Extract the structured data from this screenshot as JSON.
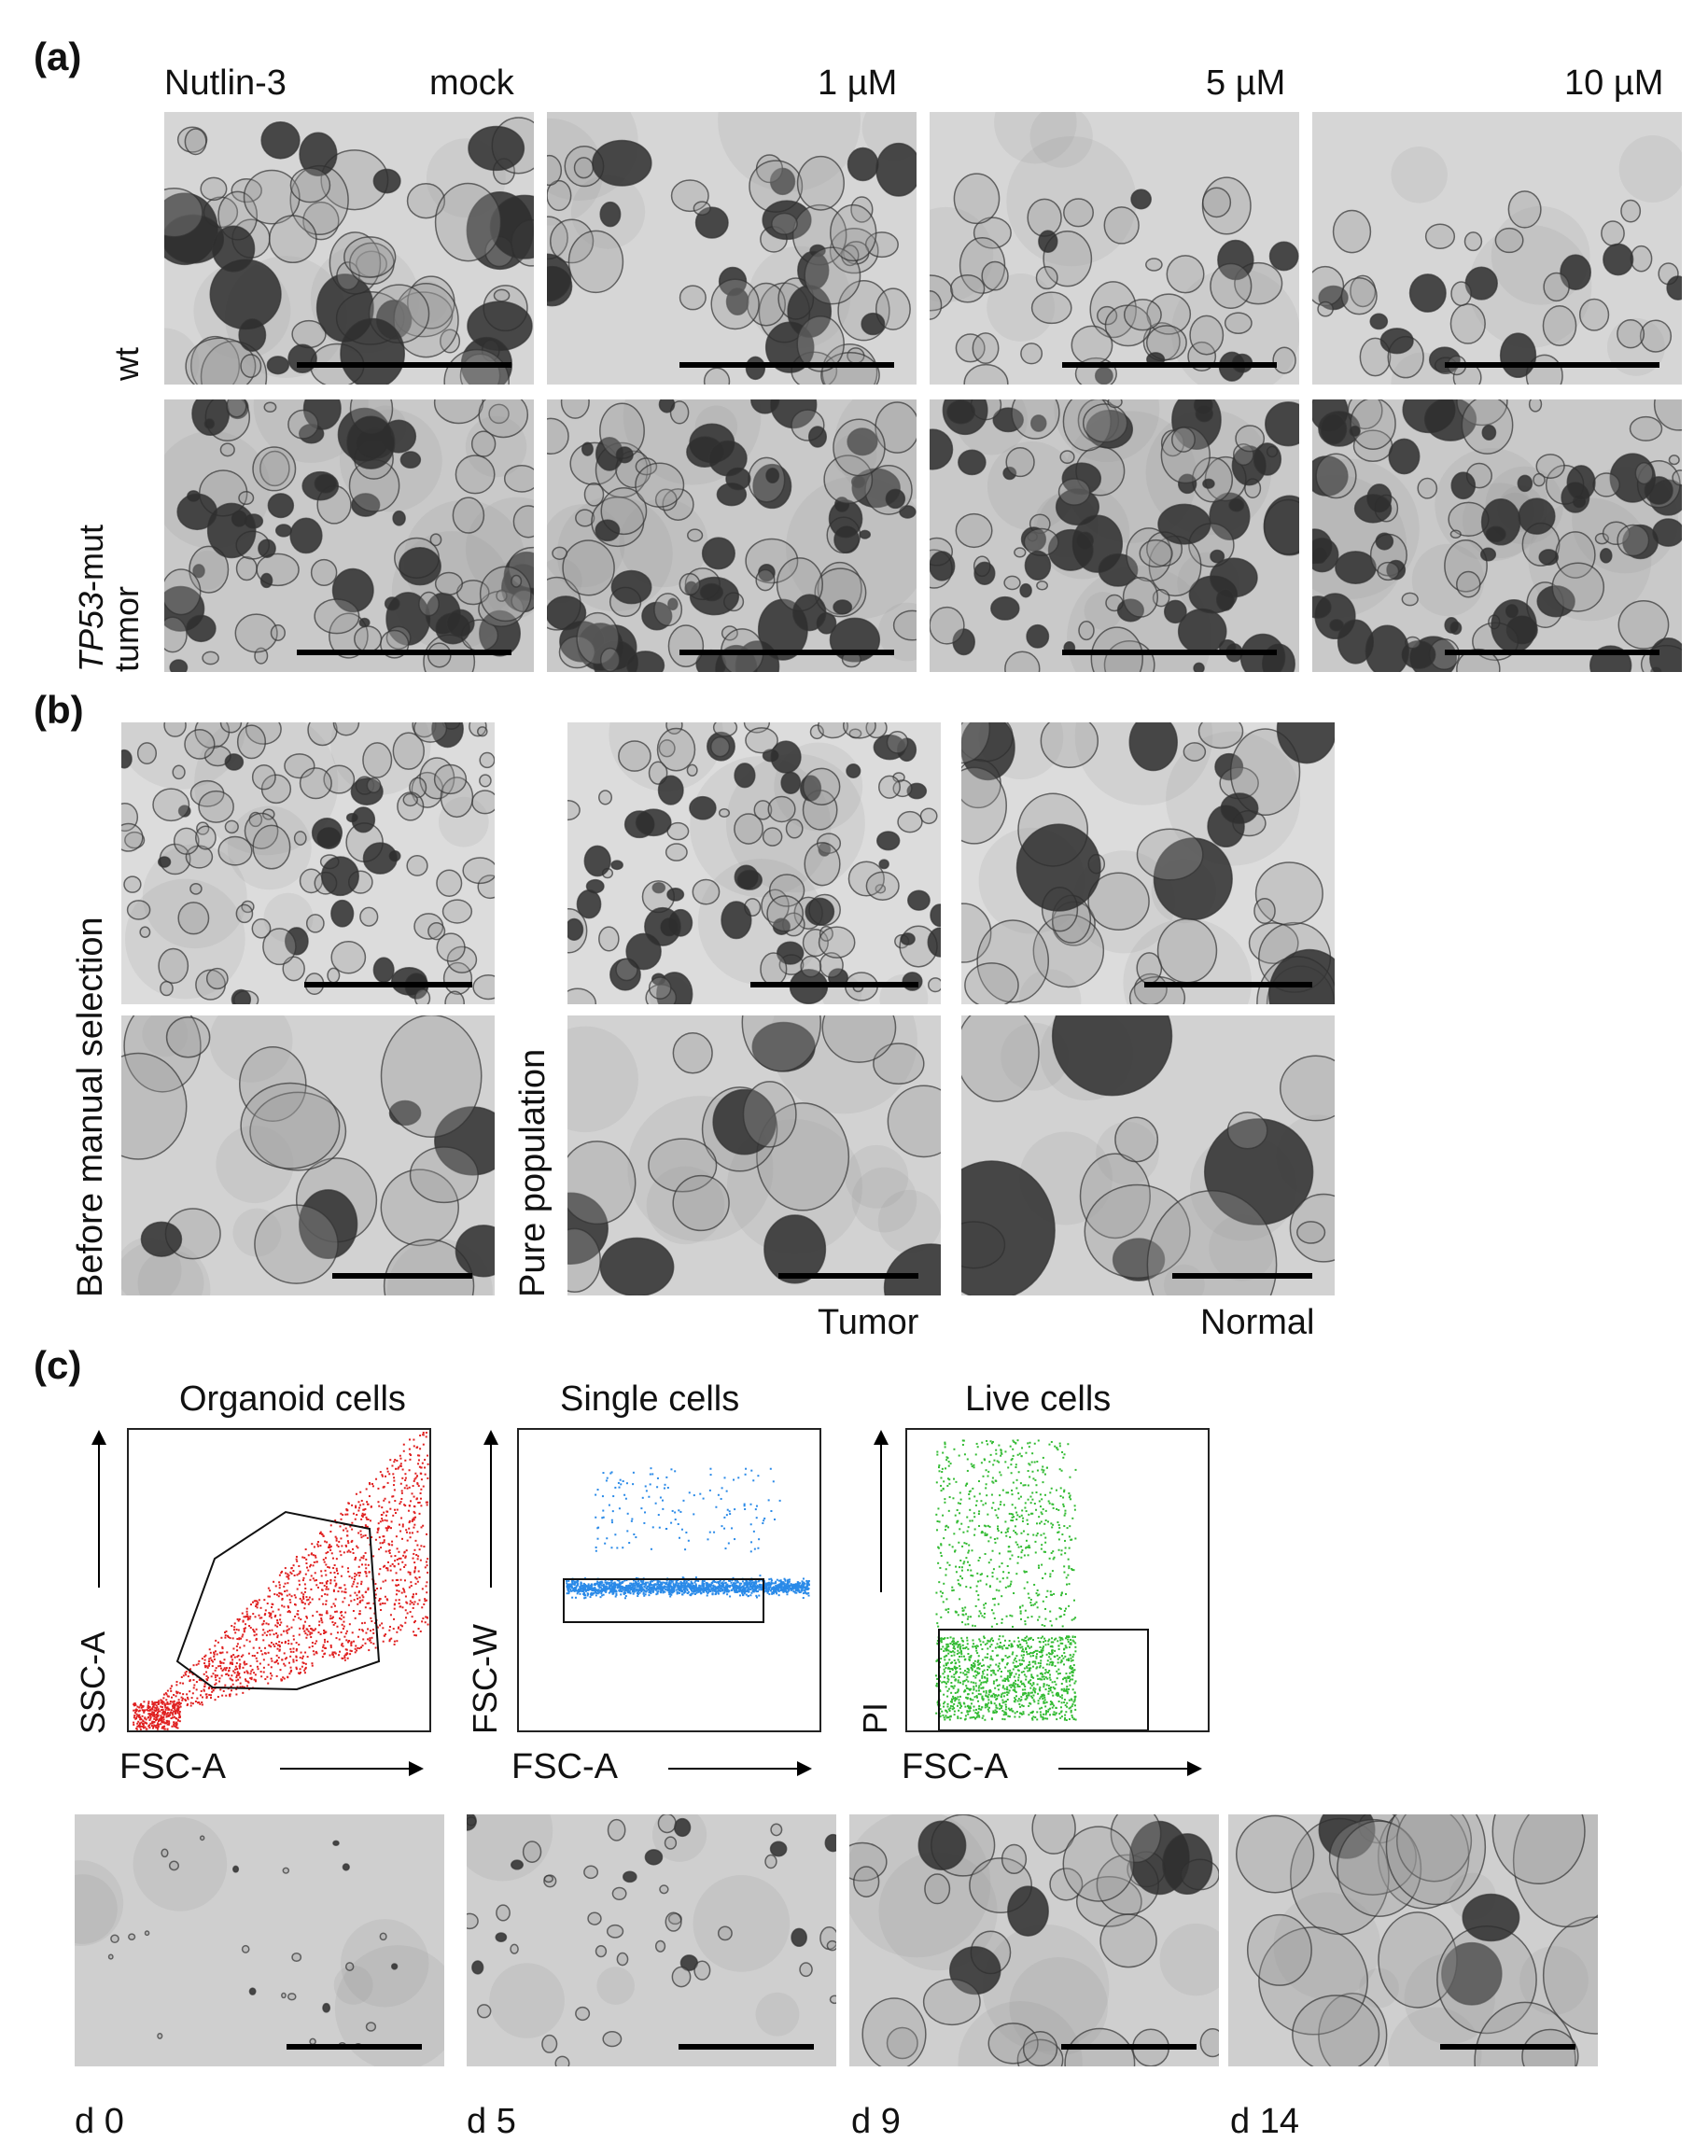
{
  "panel_a": {
    "label": "(a)",
    "treatment_label": "Nutlin-3",
    "columns": [
      "mock",
      "1 µM",
      "5 µM",
      "10 µM"
    ],
    "row_wt": "wt",
    "row_tumor_italic": "TP53",
    "row_tumor_rest": "-mut",
    "row_tumor_line2": "tumor"
  },
  "panel_b": {
    "label": "(b)",
    "left_vertical": "Before manual selection",
    "middle_vertical": "Pure population",
    "tumor_label": "Tumor",
    "normal_label": "Normal"
  },
  "panel_c": {
    "label": "(c)",
    "plots": [
      {
        "title": "Organoid cells",
        "xlabel": "FSC-A",
        "ylabel": "SSC-A",
        "color": "#e02020"
      },
      {
        "title": "Single cells",
        "xlabel": "FSC-A",
        "ylabel": "FSC-W",
        "color": "#2a8ae8"
      },
      {
        "title": "Live cells",
        "xlabel": "FSC-A",
        "ylabel": "PI",
        "color": "#33bb33"
      }
    ],
    "days": [
      "d 0",
      "d 5",
      "d 9",
      "d 14"
    ]
  }
}
